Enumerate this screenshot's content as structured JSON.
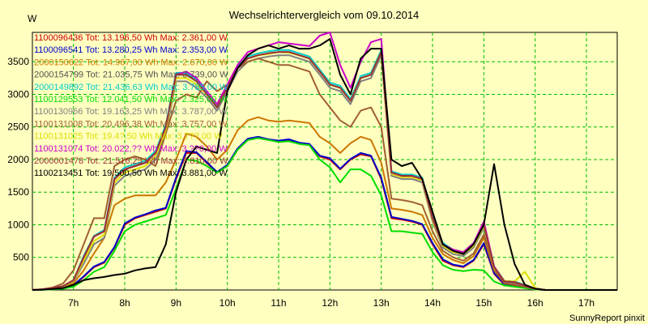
{
  "chart_data": {
    "type": "line",
    "title": "Wechselrichtervergleich vom 09.10.2014",
    "ylabel": "W",
    "xlabel": "",
    "footer": "SunnyReport pinxit",
    "xlim": [
      6.2,
      17.6
    ],
    "ylim": [
      0,
      3950
    ],
    "yticks": [
      500,
      1000,
      1500,
      2000,
      2500,
      3000,
      3500
    ],
    "xticks": [
      {
        "x": 7,
        "label": "7h"
      },
      {
        "x": 8,
        "label": "8h"
      },
      {
        "x": 9,
        "label": "9h"
      },
      {
        "x": 10,
        "label": "10h"
      },
      {
        "x": 11,
        "label": "11h"
      },
      {
        "x": 12,
        "label": "12h"
      },
      {
        "x": 13,
        "label": "13h"
      },
      {
        "x": 14,
        "label": "14h"
      },
      {
        "x": 15,
        "label": "15h"
      },
      {
        "x": 16,
        "label": "16h"
      },
      {
        "x": 17,
        "label": "17h"
      }
    ],
    "grid": true,
    "legend_position": "top-left",
    "x": [
      6.2,
      6.4,
      6.6,
      6.8,
      7.0,
      7.2,
      7.4,
      7.6,
      7.8,
      8.0,
      8.2,
      8.4,
      8.6,
      8.8,
      9.0,
      9.2,
      9.4,
      9.6,
      9.8,
      10.0,
      10.2,
      10.4,
      10.6,
      10.8,
      11.0,
      11.2,
      11.4,
      11.6,
      11.8,
      12.0,
      12.2,
      12.4,
      12.6,
      12.8,
      13.0,
      13.2,
      13.4,
      13.6,
      13.8,
      14.0,
      14.2,
      14.4,
      14.6,
      14.8,
      15.0,
      15.2,
      15.4,
      15.6,
      15.8,
      16.0,
      16.2,
      16.4,
      16.6,
      16.8,
      17.0,
      17.2,
      17.4,
      17.6
    ],
    "series": [
      {
        "name": "1100096436 Tot: 13.196,50 Wh Max: 2.361,00 W",
        "color": "#cc0000",
        "values": [
          0,
          5,
          15,
          30,
          70,
          200,
          350,
          420,
          650,
          1000,
          1100,
          1150,
          1200,
          1250,
          1700,
          2100,
          2100,
          1950,
          1800,
          1900,
          2150,
          2300,
          2330,
          2300,
          2280,
          2300,
          2250,
          2230,
          2050,
          2000,
          1850,
          2000,
          2080,
          2050,
          1700,
          1100,
          1080,
          1050,
          1000,
          700,
          450,
          380,
          350,
          450,
          700,
          250,
          80,
          70,
          40,
          10,
          0,
          0,
          0,
          0,
          0,
          0,
          0,
          0
        ]
      },
      {
        "name": "1100096541 Tot: 13.280,25 Wh Max: 2.353,00 W",
        "color": "#0000cc",
        "values": [
          0,
          5,
          15,
          30,
          75,
          210,
          360,
          430,
          660,
          1020,
          1110,
          1160,
          1220,
          1260,
          1720,
          2130,
          2110,
          1960,
          1810,
          1920,
          2170,
          2320,
          2350,
          2310,
          2290,
          2310,
          2260,
          2240,
          2060,
          2020,
          1860,
          2010,
          2100,
          2060,
          1720,
          1120,
          1090,
          1060,
          1010,
          720,
          470,
          390,
          360,
          460,
          720,
          260,
          90,
          80,
          45,
          12,
          0,
          0,
          0,
          0,
          0,
          0,
          0,
          0
        ]
      },
      {
        "name": "2000150622 Tot: 14.967,00 Wh Max: 2.670,00 W",
        "color": "#cc7700",
        "values": [
          0,
          8,
          20,
          40,
          100,
          300,
          560,
          800,
          1300,
          1400,
          1450,
          1450,
          1450,
          1650,
          2000,
          2400,
          2350,
          2200,
          2000,
          2150,
          2450,
          2600,
          2650,
          2600,
          2580,
          2600,
          2580,
          2560,
          2350,
          2250,
          2100,
          2250,
          2350,
          2300,
          1950,
          1250,
          1230,
          1200,
          1150,
          800,
          550,
          460,
          410,
          520,
          800,
          300,
          110,
          100,
          60,
          15,
          0,
          0,
          0,
          0,
          0,
          0,
          0,
          0
        ]
      },
      {
        "name": "2000154799 Tot: 21.035,75 Wh Max: 3.739,00 W",
        "color": "#505050",
        "values": [
          0,
          10,
          30,
          60,
          150,
          500,
          820,
          900,
          1700,
          1850,
          1900,
          1950,
          2100,
          2500,
          3300,
          3300,
          3200,
          3000,
          2800,
          3100,
          3400,
          3550,
          3600,
          3630,
          3650,
          3650,
          3600,
          3550,
          3350,
          3150,
          3100,
          2900,
          3250,
          3300,
          3650,
          1800,
          1750,
          1750,
          1700,
          1100,
          700,
          600,
          560,
          700,
          1000,
          350,
          130,
          120,
          70,
          20,
          0,
          0,
          0,
          0,
          0,
          0,
          0,
          0
        ]
      },
      {
        "name": "2000149892 Tot: 21.436,63 Wh Max: 3.785,00 W",
        "color": "#00cccc",
        "values": [
          0,
          10,
          30,
          60,
          150,
          520,
          830,
          920,
          1720,
          1880,
          1930,
          1980,
          2130,
          2530,
          3330,
          3330,
          3230,
          3030,
          2830,
          3130,
          3430,
          3580,
          3630,
          3660,
          3680,
          3680,
          3630,
          3580,
          3380,
          3180,
          3130,
          2930,
          3280,
          3330,
          3680,
          1820,
          1770,
          1770,
          1720,
          1120,
          720,
          620,
          580,
          720,
          1020,
          360,
          140,
          130,
          75,
          22,
          0,
          0,
          0,
          0,
          0,
          0,
          0,
          0
        ]
      },
      {
        "name": "1100129553 Tot: 12.041,50 Wh Max: 2.325,00 W",
        "color": "#00dd00",
        "values": [
          0,
          3,
          10,
          20,
          50,
          150,
          280,
          350,
          600,
          900,
          1000,
          1050,
          1100,
          1150,
          1550,
          2000,
          1980,
          1900,
          1800,
          1900,
          2150,
          2300,
          2330,
          2300,
          2270,
          2280,
          2240,
          2220,
          2000,
          1880,
          1650,
          1850,
          1850,
          1750,
          1450,
          900,
          900,
          880,
          860,
          580,
          380,
          310,
          290,
          310,
          300,
          130,
          70,
          50,
          30,
          8,
          0,
          0,
          0,
          0,
          0,
          0,
          0,
          0
        ]
      },
      {
        "name": "1100130966 Tot: 19.163,25 Wh Max: 3.787,00 W",
        "color": "#808080",
        "values": [
          0,
          10,
          25,
          50,
          130,
          400,
          700,
          800,
          1600,
          1750,
          1800,
          1850,
          2000,
          2400,
          3200,
          3200,
          3100,
          2950,
          2750,
          3050,
          3350,
          3500,
          3550,
          3580,
          3600,
          3600,
          3550,
          3500,
          3300,
          3100,
          3050,
          2850,
          3200,
          3250,
          3600,
          1750,
          1700,
          1700,
          1650,
          1050,
          650,
          550,
          520,
          650,
          950,
          330,
          120,
          110,
          65,
          18,
          0,
          0,
          0,
          0,
          0,
          0,
          0,
          0
        ]
      },
      {
        "name": "1100131008 Tot: 20.496,38 Wh Max: 3.757,00 W",
        "color": "#a06030",
        "values": [
          0,
          12,
          40,
          100,
          300,
          700,
          1100,
          1100,
          1900,
          2000,
          2050,
          2000,
          1900,
          2400,
          2900,
          3000,
          2950,
          3200,
          3050,
          3150,
          3400,
          3500,
          3550,
          3500,
          3450,
          3450,
          3400,
          3350,
          3000,
          2800,
          2600,
          2500,
          2750,
          2800,
          2500,
          1400,
          1380,
          1350,
          1300,
          900,
          600,
          500,
          450,
          560,
          850,
          320,
          100,
          80,
          50,
          15,
          0,
          0,
          0,
          0,
          0,
          0,
          0,
          0
        ]
      },
      {
        "name": "1100131025 Tot: 19.4?,50 Wh Max: 3.7??,00 W",
        "color": "#dddd00",
        "values": [
          0,
          8,
          25,
          50,
          140,
          450,
          750,
          850,
          1650,
          1800,
          1850,
          1900,
          2050,
          2450,
          3250,
          3250,
          3150,
          3000,
          2800,
          3100,
          3400,
          3550,
          3600,
          3620,
          3650,
          3640,
          3600,
          3550,
          3350,
          3150,
          3100,
          2900,
          3250,
          3300,
          3650,
          1780,
          1730,
          1730,
          1680,
          1080,
          680,
          580,
          550,
          680,
          980,
          340,
          140,
          130,
          280,
          30,
          0,
          0,
          0,
          0,
          0,
          0,
          0,
          0
        ]
      },
      {
        "name": "1100131074 Tot: 20.022,?? Wh Max: 3.??0,00 W",
        "color": "#cc00cc",
        "values": [
          0,
          10,
          30,
          60,
          150,
          500,
          820,
          900,
          1700,
          1850,
          1900,
          1950,
          2100,
          2500,
          3300,
          3350,
          3250,
          3050,
          2850,
          3150,
          3450,
          3650,
          3700,
          3750,
          3800,
          3780,
          3760,
          3740,
          3900,
          3950,
          3450,
          3100,
          3500,
          3800,
          3850,
          1800,
          1750,
          1750,
          1700,
          1100,
          700,
          620,
          580,
          720,
          1050,
          360,
          130,
          120,
          70,
          20,
          0,
          0,
          0,
          0,
          0,
          0,
          0,
          0
        ]
      },
      {
        "name": "2000001478 Tot: 21.516,25 Wh Max: 3.810,00 W",
        "color": "#993333",
        "values": [
          0,
          10,
          30,
          60,
          150,
          500,
          820,
          900,
          1700,
          1850,
          1900,
          1950,
          2100,
          2500,
          3300,
          3300,
          3200,
          3000,
          2800,
          3100,
          3400,
          3550,
          3600,
          3630,
          3650,
          3650,
          3600,
          3550,
          3350,
          3150,
          3100,
          2900,
          3250,
          3300,
          3650,
          1800,
          1750,
          1750,
          1700,
          1100,
          700,
          600,
          560,
          700,
          1000,
          350,
          130,
          120,
          70,
          20,
          0,
          0,
          0,
          0,
          0,
          0,
          0,
          0
        ]
      },
      {
        "name": "1100213451 Tot: 19.500,50 Wh Max: 3.881,00 W",
        "color": "#000000",
        "values": [
          0,
          5,
          15,
          30,
          80,
          150,
          180,
          200,
          230,
          250,
          300,
          330,
          350,
          700,
          1500,
          2000,
          2200,
          2150,
          2100,
          3050,
          3400,
          3600,
          3700,
          3750,
          3700,
          3750,
          3700,
          3700,
          3750,
          3850,
          3300,
          3000,
          3550,
          3700,
          3700,
          2000,
          1900,
          1950,
          1700,
          1200,
          700,
          600,
          550,
          700,
          1000,
          1930,
          1000,
          400,
          80,
          20,
          0,
          0,
          0,
          0,
          0,
          0,
          0,
          0
        ]
      }
    ]
  }
}
